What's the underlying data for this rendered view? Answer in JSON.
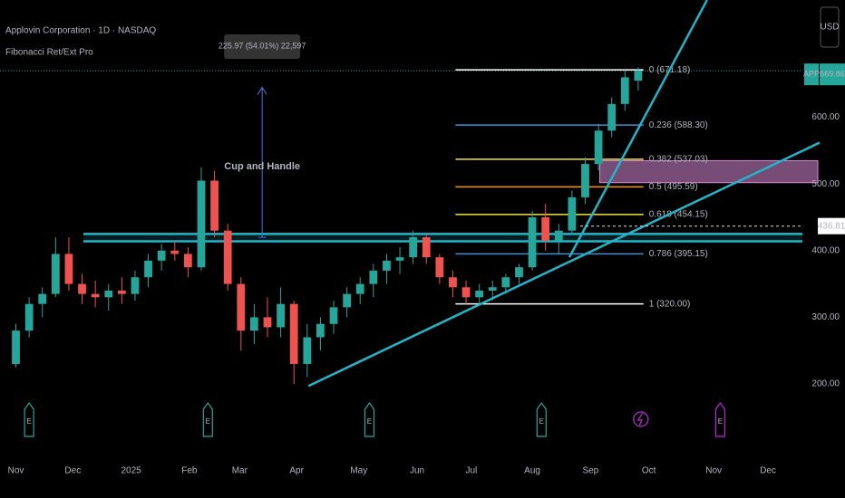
{
  "header": {
    "symbol": "Applovin Corporation · 1D · NASDAQ",
    "indicator": "Fibonacci Ret/Ext Pro",
    "currency": "USD"
  },
  "chart_data": {
    "type": "candlestick",
    "up_color": "#26a69a",
    "down_color": "#ef5350",
    "candles": [
      [
        230,
        290,
        225,
        280
      ],
      [
        280,
        330,
        270,
        320
      ],
      [
        320,
        345,
        300,
        335
      ],
      [
        335,
        420,
        330,
        395
      ],
      [
        395,
        420,
        340,
        350
      ],
      [
        350,
        365,
        320,
        335
      ],
      [
        335,
        355,
        315,
        330
      ],
      [
        330,
        350,
        310,
        340
      ],
      [
        340,
        360,
        320,
        335
      ],
      [
        335,
        370,
        325,
        360
      ],
      [
        360,
        395,
        345,
        385
      ],
      [
        385,
        410,
        370,
        400
      ],
      [
        400,
        415,
        385,
        395
      ],
      [
        395,
        405,
        360,
        375
      ],
      [
        375,
        525,
        370,
        505
      ],
      [
        505,
        520,
        420,
        430
      ],
      [
        430,
        440,
        340,
        350
      ],
      [
        350,
        360,
        250,
        280
      ],
      [
        280,
        320,
        260,
        300
      ],
      [
        300,
        330,
        270,
        285
      ],
      [
        285,
        345,
        270,
        320
      ],
      [
        320,
        325,
        200,
        230
      ],
      [
        230,
        290,
        210,
        270
      ],
      [
        270,
        300,
        250,
        290
      ],
      [
        290,
        325,
        275,
        315
      ],
      [
        315,
        345,
        300,
        335
      ],
      [
        335,
        360,
        320,
        350
      ],
      [
        350,
        380,
        330,
        370
      ],
      [
        370,
        395,
        350,
        385
      ],
      [
        385,
        405,
        365,
        390
      ],
      [
        390,
        430,
        380,
        420
      ],
      [
        420,
        425,
        380,
        390
      ],
      [
        390,
        395,
        350,
        360
      ],
      [
        360,
        370,
        330,
        345
      ],
      [
        345,
        355,
        320,
        330
      ],
      [
        330,
        350,
        320,
        340
      ],
      [
        340,
        355,
        325,
        345
      ],
      [
        345,
        365,
        335,
        360
      ],
      [
        360,
        380,
        350,
        375
      ],
      [
        375,
        460,
        370,
        450
      ],
      [
        450,
        470,
        400,
        415
      ],
      [
        415,
        440,
        395,
        430
      ],
      [
        430,
        490,
        425,
        480
      ],
      [
        480,
        540,
        470,
        530
      ],
      [
        530,
        590,
        520,
        580
      ],
      [
        580,
        630,
        570,
        620
      ],
      [
        620,
        670,
        610,
        660
      ],
      [
        655,
        675,
        640,
        669.86
      ]
    ],
    "xlim": [
      -1.2,
      59.4
    ],
    "xticks": [
      {
        "value": 0,
        "label": "Nov"
      },
      {
        "value": 4.3,
        "label": "Dec"
      },
      {
        "value": 8.7,
        "label": "2025"
      },
      {
        "value": 13.1,
        "label": "Feb"
      },
      {
        "value": 16.9,
        "label": "Mar"
      },
      {
        "value": 21.2,
        "label": "Apr"
      },
      {
        "value": 25.9,
        "label": "May"
      },
      {
        "value": 30.3,
        "label": "Jun"
      },
      {
        "value": 34.4,
        "label": "Jul"
      },
      {
        "value": 39.0,
        "label": "Aug"
      },
      {
        "value": 43.4,
        "label": "Sep"
      },
      {
        "value": 47.8,
        "label": "Oct"
      },
      {
        "value": 52.7,
        "label": "Nov"
      },
      {
        "value": 56.8,
        "label": "Dec"
      }
    ],
    "ylim": [
      90,
      776
    ],
    "yticks": [
      {
        "value": 600,
        "label": "600.00"
      },
      {
        "value": 500,
        "label": "500.00"
      },
      {
        "value": 400,
        "label": "400.00"
      },
      {
        "value": 300,
        "label": "300.00"
      },
      {
        "value": 200,
        "label": "200.00"
      }
    ],
    "last_price": {
      "symbol": "APP",
      "value": 669.86,
      "color": "#26a69a"
    },
    "crosshair_price": 436.81,
    "fib_levels": [
      {
        "label": "0 (671.18)",
        "price": 671.18,
        "color": "#ffffff"
      },
      {
        "label": "0.236 (588.30)",
        "price": 588.3,
        "color": "#3d8fd6"
      },
      {
        "label": "0.382 (537.03)",
        "price": 537.03,
        "color": "#f2e53d"
      },
      {
        "label": "0.5 (495.59)",
        "price": 495.59,
        "color": "#ff9800"
      },
      {
        "label": "0.618 (454.15)",
        "price": 454.15,
        "color": "#f2e53d"
      },
      {
        "label": "0.786 (395.15)",
        "price": 395.15,
        "color": "#3d8fd6"
      },
      {
        "label": "1 (320.00)",
        "price": 320.0,
        "color": "#ffffff"
      }
    ],
    "fib_range": [
      33.2,
      47.4
    ],
    "support_levels": [
      425,
      414
    ],
    "support_start": 5.1,
    "trend_color": "#22b5c9",
    "trendlines": [
      {
        "start": [
          22.1,
          197
        ],
        "end": [
          60.7,
          562
        ]
      },
      {
        "start": [
          41.8,
          390
        ],
        "end": [
          52.2,
          776
        ]
      }
    ],
    "zone": {
      "top": 535,
      "bottom": 502,
      "start": 44.1,
      "color": "#d88ad8"
    },
    "annotation": {
      "text": "Cup and Handle",
      "measure": "225.97 (54.01%) 22,597",
      "week": 18.6,
      "from": 420,
      "to": 645
    },
    "events": [
      {
        "label": "E",
        "week": 1.0,
        "color": "#26a69a"
      },
      {
        "label": "E",
        "week": 14.5,
        "color": "#26a69a"
      },
      {
        "label": "E",
        "week": 26.7,
        "color": "#26a69a"
      },
      {
        "label": "E",
        "week": 39.7,
        "color": "#26a69a"
      },
      {
        "week": 47.2,
        "color": "#9c27b0"
      },
      {
        "label": "E",
        "week": 53.2,
        "color": "#c020e0"
      }
    ]
  }
}
